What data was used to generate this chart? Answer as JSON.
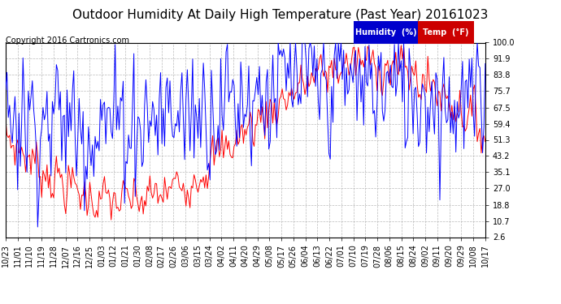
{
  "title": "Outdoor Humidity At Daily High Temperature (Past Year) 20161023",
  "copyright": "Copyright 2016 Cartronics.com",
  "ylabel_right_ticks": [
    2.6,
    10.7,
    18.8,
    27.0,
    35.1,
    43.2,
    51.3,
    59.4,
    67.5,
    75.7,
    83.8,
    91.9,
    100.0
  ],
  "humidity_color": "#0000ff",
  "temp_color": "#ff0000",
  "bg_color": "#ffffff",
  "plot_bg_color": "#ffffff",
  "grid_color": "#aaaaaa",
  "title_fontsize": 11,
  "tick_label_fontsize": 7,
  "x_labels": [
    "10/23",
    "11/01",
    "11/10",
    "11/19",
    "11/28",
    "12/07",
    "12/16",
    "12/25",
    "01/03",
    "01/12",
    "01/21",
    "01/30",
    "02/08",
    "02/17",
    "02/26",
    "03/06",
    "03/15",
    "03/24",
    "04/02",
    "04/11",
    "04/20",
    "04/29",
    "05/08",
    "05/17",
    "05/26",
    "06/04",
    "06/13",
    "06/22",
    "07/01",
    "07/10",
    "07/19",
    "07/28",
    "08/06",
    "08/15",
    "08/24",
    "09/02",
    "09/11",
    "09/20",
    "09/29",
    "10/08",
    "10/17"
  ],
  "legend_humidity_bg": "#0000cc",
  "legend_temp_bg": "#cc0000",
  "legend_humidity_text": "Humidity  (%)",
  "legend_temp_text": "Temp  (°F)"
}
